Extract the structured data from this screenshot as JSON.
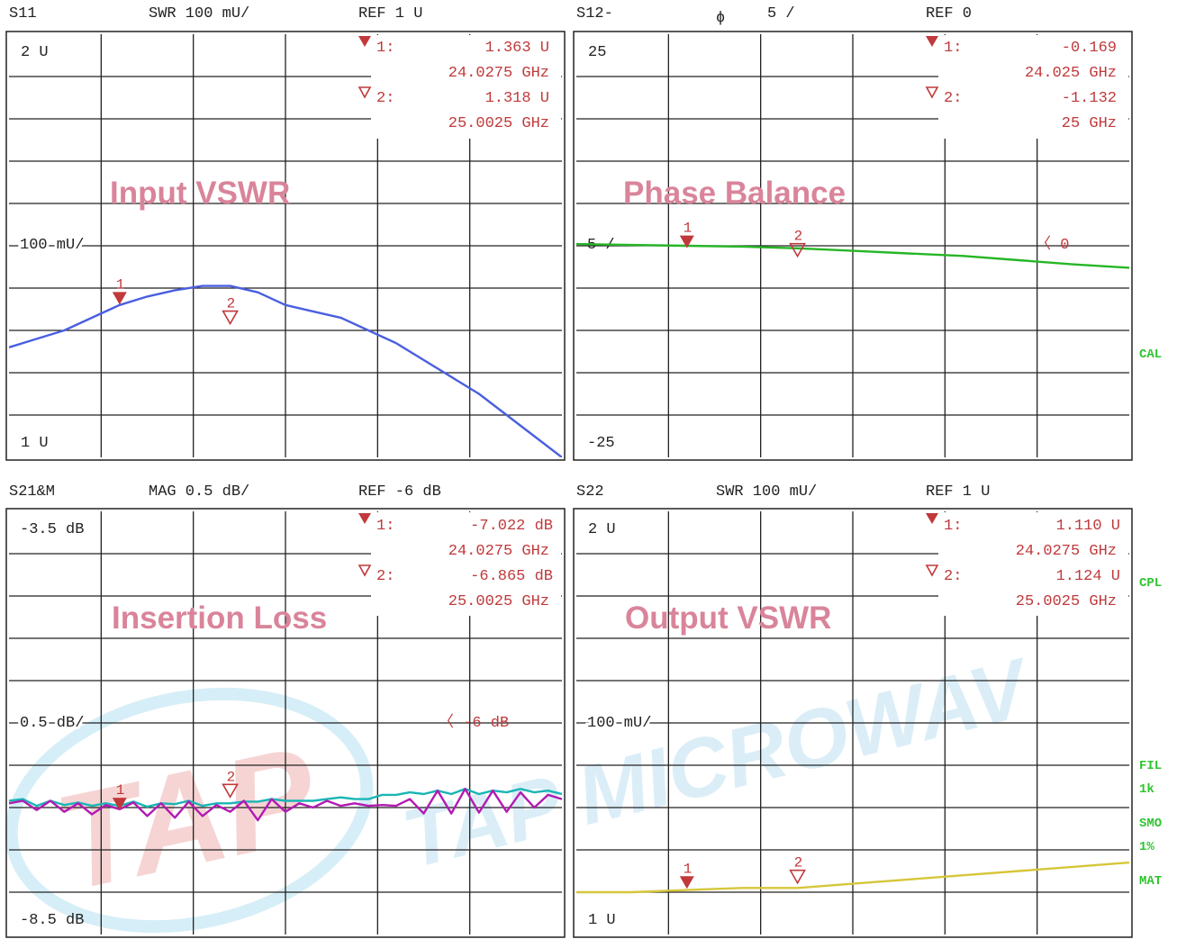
{
  "colors": {
    "marker": "#c0393b",
    "s11_trace": "#4a5fe0",
    "s12_trace": "#26b626",
    "s21_trace_a": "#b21ab2",
    "s21_trace_b": "#1ab5b5",
    "s22_trace": "#d6c63a",
    "title": "#d9849a",
    "side_label": "#2ec52e"
  },
  "watermark": {
    "logo": "TAP",
    "text": "TAP MICROWAV"
  },
  "side_labels": [
    "CAL",
    "CPL",
    "FIL",
    "1k",
    "SMO",
    "1%",
    "MAT"
  ],
  "panels": [
    {
      "header": {
        "param": "S11",
        "scale": "SWR 100 mU/",
        "ref": "REF 1 U"
      },
      "title": "Input VSWR",
      "top_label": "2 U",
      "ref_label": "100 mU/",
      "bottom_label": "1 U",
      "markers": [
        {
          "num": "1:",
          "val": "1.363  U",
          "freq": "24.0275 GHz"
        },
        {
          "num": "2:",
          "val": "1.318  U",
          "freq": "25.0025 GHz"
        }
      ],
      "trace_marks": [
        "1",
        "2"
      ]
    },
    {
      "header": {
        "param": "S12-",
        "phi": "ϕ",
        "scale": "5  /",
        "ref": "REF 0"
      },
      "title": "Phase Balance",
      "top_label": "25",
      "ref_label": "5  /",
      "bottom_label": "-25",
      "ref_arrow": "〈  0",
      "markers": [
        {
          "num": "1:",
          "val": "-0.169",
          "freq": "24.025 GHz"
        },
        {
          "num": "2:",
          "val": "-1.132",
          "freq": "25 GHz"
        }
      ],
      "trace_marks": [
        "1",
        "2"
      ]
    },
    {
      "header": {
        "param": "S21&M",
        "scale": "MAG 0.5 dB/",
        "ref": "REF -6 dB"
      },
      "title": "Insertion Loss",
      "top_label": "-3.5 dB",
      "ref_label": "0.5 dB/",
      "bottom_label": "-8.5 dB",
      "ref_arrow": "〈 -6 dB",
      "markers": [
        {
          "num": "1:",
          "val": "-7.022 dB",
          "freq": "24.0275 GHz"
        },
        {
          "num": "2:",
          "val": "-6.865 dB",
          "freq": "25.0025 GHz"
        }
      ],
      "trace_marks": [
        "1",
        "2"
      ]
    },
    {
      "header": {
        "param": "S22",
        "scale": "SWR 100 mU/",
        "ref": "REF 1 U"
      },
      "title": "Output VSWR",
      "top_label": "2 U",
      "ref_label": "100 mU/",
      "bottom_label": "1 U",
      "markers": [
        {
          "num": "1:",
          "val": "1.110  U",
          "freq": "24.0275 GHz"
        },
        {
          "num": "2:",
          "val": "1.124  U",
          "freq": "25.0025 GHz"
        }
      ],
      "trace_marks": [
        "1",
        "2"
      ]
    }
  ],
  "chart_data": [
    {
      "type": "line",
      "name": "S11 SWR",
      "x": [
        0,
        0.5,
        1,
        1.5,
        2,
        2.5,
        3,
        3.5,
        4,
        4.5,
        5,
        5.5,
        6,
        6.5,
        7,
        7.5,
        8,
        8.5,
        9,
        9.5,
        10
      ],
      "series": [
        {
          "values": [
            1.26,
            1.28,
            1.3,
            1.33,
            1.36,
            1.38,
            1.395,
            1.405,
            1.405,
            1.39,
            1.36,
            1.345,
            1.33,
            1.3,
            1.27,
            1.23,
            1.19,
            1.15,
            1.1,
            1.05,
            1.0
          ]
        }
      ],
      "ylim": [
        1,
        2
      ],
      "markers": [
        {
          "x": 2,
          "y": 1.363
        },
        {
          "x": 4,
          "y": 1.318
        }
      ]
    },
    {
      "type": "line",
      "name": "S12 Phase",
      "x": [
        0,
        1,
        2,
        3,
        4,
        5,
        6,
        7,
        8,
        9,
        10
      ],
      "series": [
        {
          "values": [
            0.2,
            0.1,
            0.0,
            -0.1,
            -0.3,
            -0.6,
            -0.9,
            -1.2,
            -1.7,
            -2.2,
            -2.6
          ]
        }
      ],
      "ylim": [
        -25,
        25
      ],
      "markers": [
        {
          "x": 2,
          "y": -0.169
        },
        {
          "x": 4,
          "y": -1.132
        }
      ]
    },
    {
      "type": "line",
      "name": "S21 Insertion Loss",
      "x": [
        0,
        0.25,
        0.5,
        0.75,
        1,
        1.25,
        1.5,
        1.75,
        2,
        2.25,
        2.5,
        2.75,
        3,
        3.25,
        3.5,
        3.75,
        4,
        4.25,
        4.5,
        4.75,
        5,
        5.25,
        5.5,
        5.75,
        6,
        6.25,
        6.5,
        6.75,
        7,
        7.25,
        7.5,
        7.75,
        8,
        8.25,
        8.5,
        8.75,
        9,
        9.25,
        9.5,
        9.75,
        10
      ],
      "series": [
        {
          "values": [
            -6.95,
            -6.92,
            -7.03,
            -6.92,
            -7.05,
            -6.95,
            -7.08,
            -6.97,
            -7.02,
            -6.94,
            -7.1,
            -6.95,
            -7.12,
            -6.93,
            -7.1,
            -6.97,
            -7.05,
            -6.92,
            -7.15,
            -6.9,
            -7.05,
            -6.95,
            -7.0,
            -6.92,
            -6.98,
            -6.95,
            -6.98,
            -6.97,
            -6.98,
            -6.9,
            -7.07,
            -6.8,
            -7.07,
            -6.78,
            -7.06,
            -6.8,
            -7.05,
            -6.82,
            -7.0,
            -6.85,
            -6.9
          ]
        },
        {
          "values": [
            -6.92,
            -6.9,
            -6.98,
            -6.92,
            -6.97,
            -6.94,
            -6.98,
            -6.95,
            -6.98,
            -6.93,
            -6.99,
            -6.95,
            -6.96,
            -6.92,
            -6.98,
            -6.95,
            -6.95,
            -6.93,
            -6.93,
            -6.9,
            -6.92,
            -6.92,
            -6.92,
            -6.9,
            -6.88,
            -6.9,
            -6.9,
            -6.85,
            -6.85,
            -6.82,
            -6.84,
            -6.8,
            -6.84,
            -6.78,
            -6.84,
            -6.8,
            -6.82,
            -6.78,
            -6.82,
            -6.8,
            -6.84
          ]
        }
      ],
      "ylim": [
        -8.5,
        -3.5
      ],
      "markers": [
        {
          "x": 2,
          "y": -7.022
        },
        {
          "x": 4,
          "y": -6.865
        }
      ]
    },
    {
      "type": "line",
      "name": "S22 SWR",
      "x": [
        0,
        1,
        2,
        3,
        4,
        5,
        6,
        7,
        8,
        9,
        10
      ],
      "series": [
        {
          "values": [
            1.1,
            1.1,
            1.105,
            1.11,
            1.11,
            1.12,
            1.13,
            1.14,
            1.15,
            1.16,
            1.17
          ]
        }
      ],
      "ylim": [
        1,
        2
      ],
      "markers": [
        {
          "x": 2,
          "y": 1.11
        },
        {
          "x": 4,
          "y": 1.124
        }
      ]
    }
  ]
}
